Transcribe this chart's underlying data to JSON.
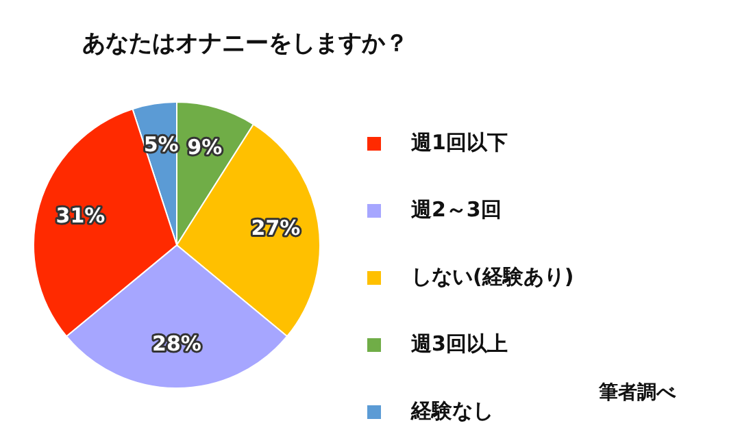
{
  "chart_data": {
    "type": "pie",
    "title": "あなたはオナニーをしますか？",
    "categories": [
      "週1回以下",
      "週2～3回",
      "しない(経験あり)",
      "週3回以上",
      "経験なし"
    ],
    "values": [
      31,
      28,
      27,
      9,
      5
    ],
    "colors": [
      "#ff2a00",
      "#a6a6ff",
      "#ffc000",
      "#70ad47",
      "#5b9bd5"
    ],
    "value_labels": [
      "31%",
      "28%",
      "27%",
      "9%",
      "5%"
    ],
    "legend": "right",
    "annotations": [
      "筆者調べ"
    ]
  }
}
